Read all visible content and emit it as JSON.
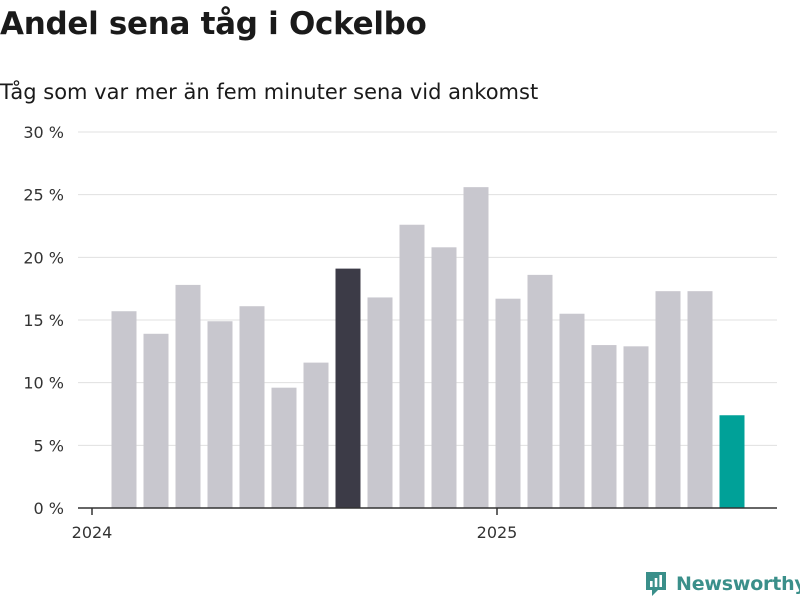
{
  "header": {
    "title": "Andel sena tåg i Ockelbo",
    "subtitle": "Tåg som var mer än fem minuter sena vid ankomst"
  },
  "brand": {
    "name": "Newsworthy"
  },
  "colors": {
    "bar_default": "#c8c7ce",
    "bar_highlight": "#3c3b47",
    "bar_latest": "#00a198",
    "grid": "#e0e0e0",
    "axis": "#333333",
    "brand": "#3a8f8a"
  },
  "chart_data": {
    "type": "bar",
    "title": "Andel sena tåg i Ockelbo",
    "subtitle": "Tåg som var mer än fem minuter sena vid ankomst",
    "xlabel": "",
    "ylabel": "",
    "ylim": [
      0,
      30
    ],
    "yticks": [
      0,
      5,
      10,
      15,
      20,
      25,
      30
    ],
    "ytick_labels": [
      "0 %",
      "5 %",
      "10 %",
      "15 %",
      "20 %",
      "25 %",
      "30 %"
    ],
    "xtick_labels": [
      {
        "label": "2024",
        "index": 0
      },
      {
        "label": "2025",
        "index": 12
      }
    ],
    "values": [
      15.7,
      13.9,
      17.8,
      14.9,
      16.1,
      9.6,
      11.6,
      19.1,
      16.8,
      22.6,
      20.8,
      25.6,
      16.7,
      18.6,
      15.5,
      13.0,
      12.9,
      17.3,
      17.3,
      7.4
    ],
    "highlight": [
      {
        "index": 7,
        "color": "#3c3b47"
      },
      {
        "index": 19,
        "color": "#00a198"
      }
    ],
    "grid": true
  }
}
